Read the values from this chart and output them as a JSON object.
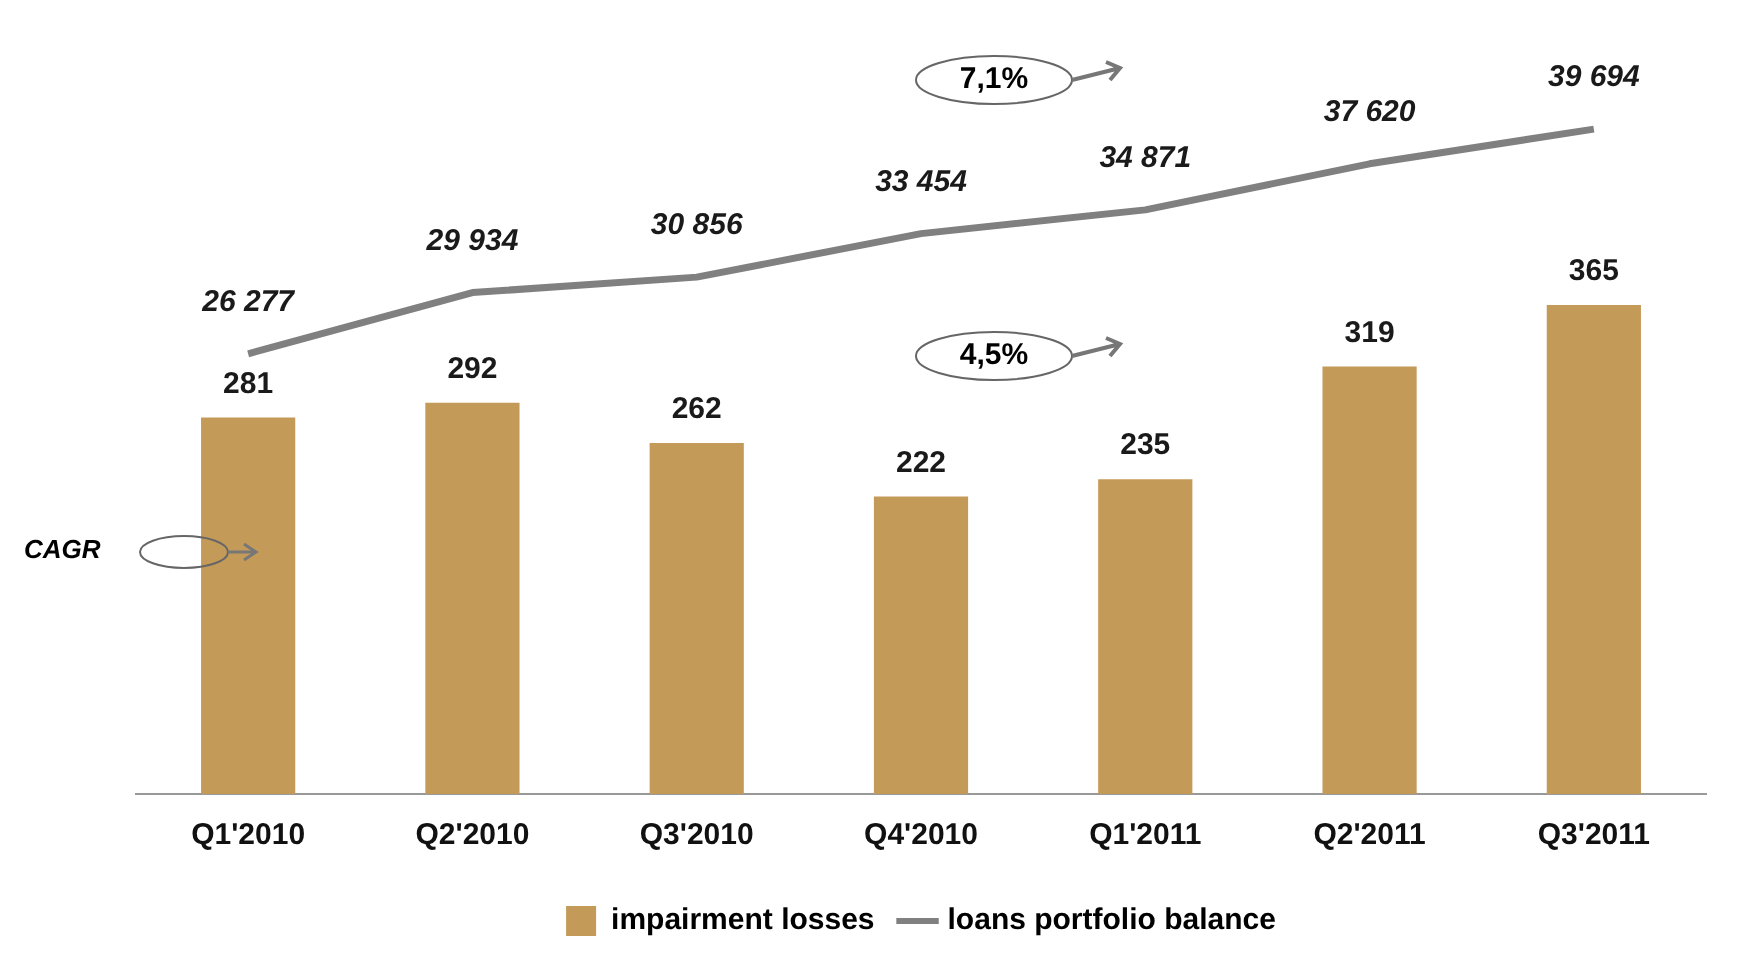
{
  "chart_data": {
    "type": "bar",
    "categories": [
      "Q1'2010",
      "Q2'2010",
      "Q3'2010",
      "Q4'2010",
      "Q1'2011",
      "Q2'2011",
      "Q3'2011"
    ],
    "series": [
      {
        "name": "impairment losses",
        "color": "#c49a58",
        "values": [
          281,
          292,
          262,
          222,
          235,
          319,
          365
        ]
      },
      {
        "name": "loans portfolio balance",
        "type": "line",
        "axis": "y2",
        "color": "#808080",
        "values": [
          26277,
          29934,
          30856,
          33454,
          34871,
          37620,
          39694
        ],
        "value_labels": [
          "26 277",
          "29 934",
          "30 856",
          "33 454",
          "34 871",
          "37 620",
          "39 694"
        ]
      }
    ],
    "tick_labels": "x",
    "data_labels": true,
    "legend": "bottom",
    "grid": false,
    "marker": "none",
    "annotations": [
      "CAGR",
      "7,1%",
      "4,5%"
    ]
  }
}
